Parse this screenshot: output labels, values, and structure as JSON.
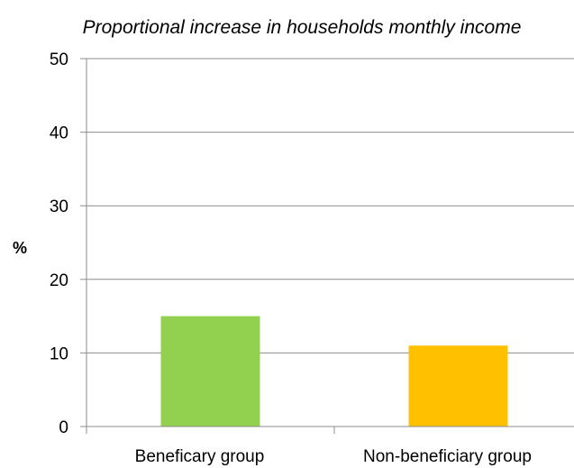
{
  "chart_data": {
    "type": "bar",
    "title": "Proportional increase in households monthly income",
    "xlabel": "",
    "ylabel": "%",
    "categories": [
      "Beneficary group",
      "Non-beneficiary group"
    ],
    "values": [
      15,
      11
    ],
    "colors": [
      "#92d050",
      "#ffc000"
    ],
    "ylim": [
      0,
      50
    ],
    "yticks": [
      0,
      10,
      20,
      30,
      40,
      50
    ],
    "grid": true,
    "legend": "none"
  }
}
